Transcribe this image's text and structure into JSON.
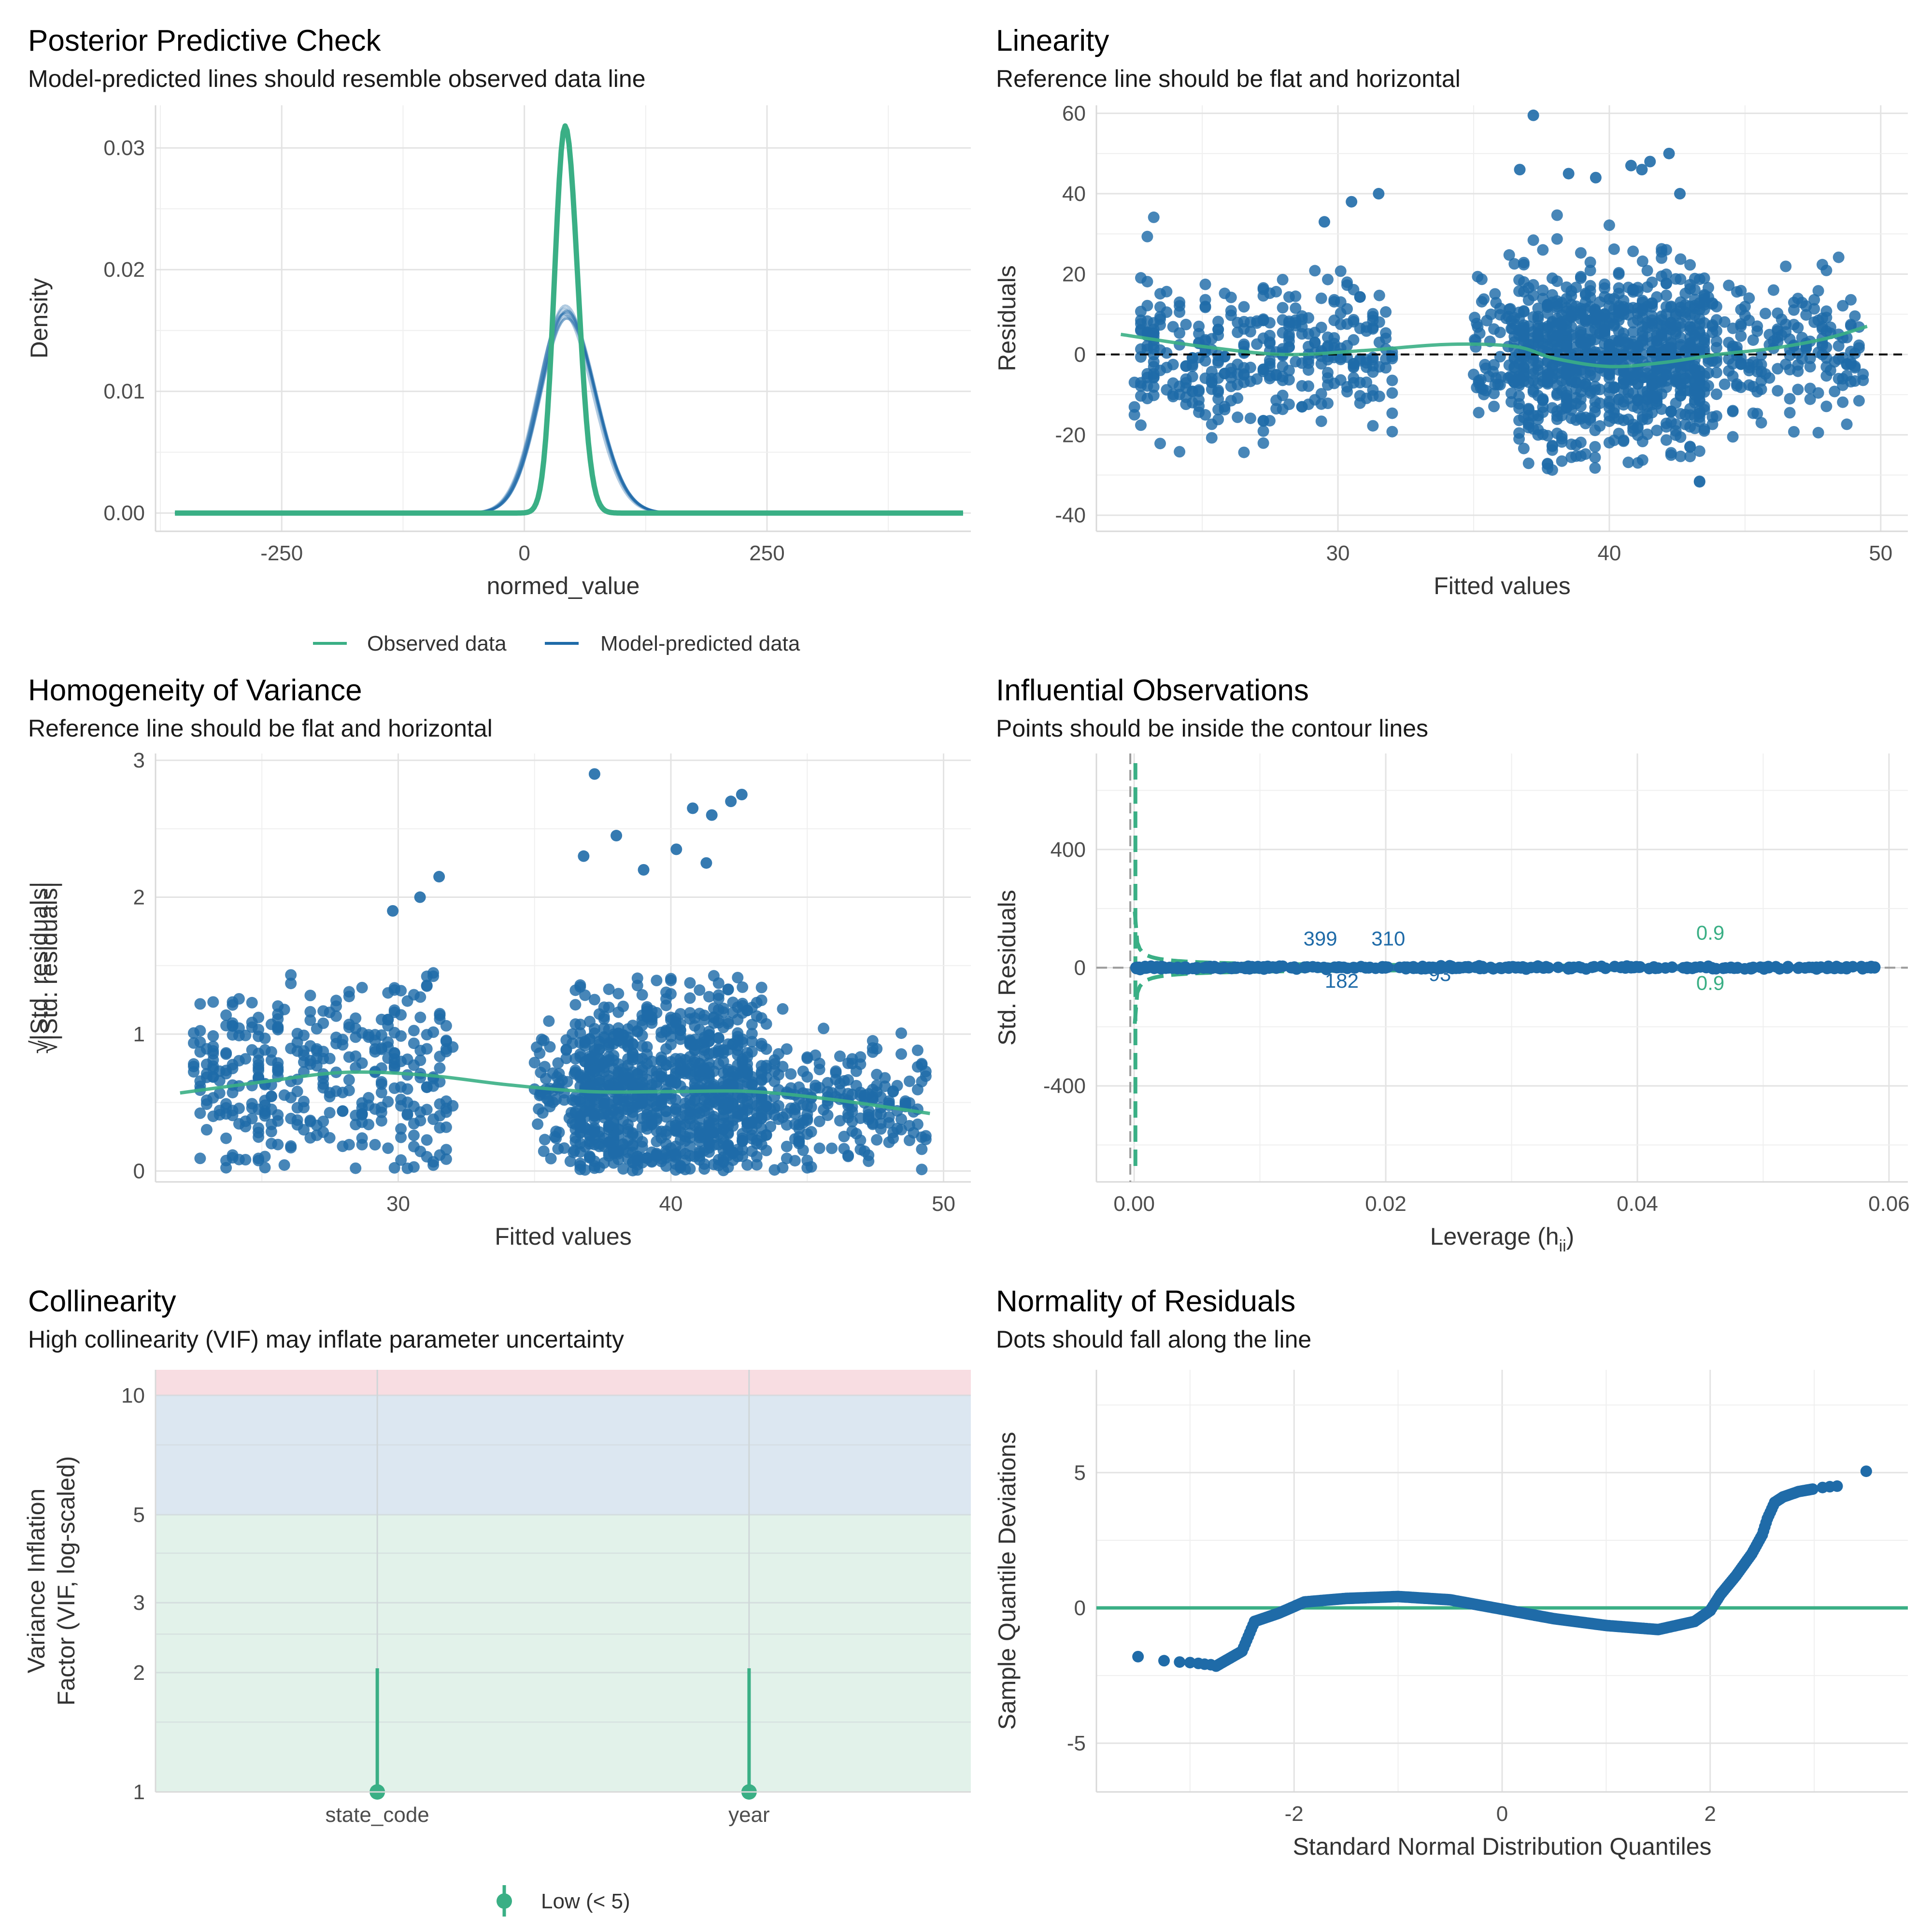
{
  "colors": {
    "observed": "#3aaf85",
    "predicted": "#1f6ba8",
    "points": "#1f6ba8",
    "smooth": "#3aaf85",
    "vif_low": "#3aaf85",
    "zone_low": "#e2f2ea",
    "zone_mid": "#dce7f1",
    "zone_high": "#f8dde2",
    "grid": "#e3e3e3"
  },
  "chart_data": [
    {
      "id": "ppc",
      "type": "line",
      "title": "Posterior Predictive Check",
      "subtitle": "Model-predicted lines should resemble observed data line",
      "xlabel": "normed_value",
      "ylabel": "Density",
      "xlim": [
        -380,
        460
      ],
      "ylim": [
        -0.0015,
        0.0335
      ],
      "xticks": [
        {
          "v": -250,
          "label": "-250"
        },
        {
          "v": 0,
          "label": "0"
        },
        {
          "v": 250,
          "label": "250"
        }
      ],
      "yticks": [
        {
          "v": 0,
          "label": "0.00"
        },
        {
          "v": 0.01,
          "label": "0.01"
        },
        {
          "v": 0.02,
          "label": "0.02"
        },
        {
          "v": 0.03,
          "label": "0.03"
        }
      ],
      "x_range": [
        -360,
        453
      ],
      "legend_position": "bottom",
      "series": [
        {
          "name": "Observed data",
          "shape": "peak",
          "peak_x": 42,
          "peak_y": 0.0318,
          "sigma_left": 11,
          "sigma_right": 13
        },
        {
          "name": "Model-predicted data",
          "shape": "peak",
          "peak_x": 42,
          "peak_y": 0.0165,
          "sigma_left": 27,
          "sigma_right": 30
        }
      ]
    },
    {
      "id": "linearity",
      "type": "scatter",
      "title": "Linearity",
      "subtitle": "Reference line should be flat and horizontal",
      "xlabel": "Fitted values",
      "ylabel": "Residuals",
      "xlim": [
        21.1,
        51
      ],
      "ylim": [
        -44,
        62
      ],
      "xticks": [
        {
          "v": 30,
          "label": "30"
        },
        {
          "v": 40,
          "label": "40"
        },
        {
          "v": 50,
          "label": "50"
        }
      ],
      "yticks": [
        {
          "v": -40,
          "label": "-40"
        },
        {
          "v": -20,
          "label": "-20"
        },
        {
          "v": 0,
          "label": "0"
        },
        {
          "v": 20,
          "label": "20"
        },
        {
          "v": 40,
          "label": "40"
        },
        {
          "v": 60,
          "label": "60"
        }
      ],
      "reference_line": 0,
      "clusters": [
        {
          "x": [
            22.5,
            32
          ],
          "n": 360,
          "sd": 12
        },
        {
          "x": [
            35,
            36.5
          ],
          "n": 60,
          "sd": 11
        },
        {
          "x": [
            36.5,
            43.5
          ],
          "n": 900,
          "sd": 14
        },
        {
          "x": [
            43.5,
            49.5
          ],
          "n": 200,
          "sd": 11
        }
      ],
      "outliers": [
        [
          37.2,
          59.5
        ],
        [
          42.2,
          50
        ],
        [
          41.5,
          48
        ],
        [
          40.8,
          47
        ],
        [
          36.7,
          46
        ],
        [
          31.5,
          40
        ],
        [
          30.5,
          38
        ],
        [
          29.5,
          33
        ],
        [
          38.5,
          45
        ],
        [
          41.2,
          46
        ],
        [
          42.6,
          40
        ],
        [
          39.5,
          44
        ]
      ],
      "smooth": [
        [
          22,
          5
        ],
        [
          25,
          2
        ],
        [
          28,
          0
        ],
        [
          31,
          1
        ],
        [
          34,
          2.5
        ],
        [
          36.5,
          2
        ],
        [
          38,
          -1
        ],
        [
          40,
          -3
        ],
        [
          42,
          -2
        ],
        [
          44,
          0
        ],
        [
          46,
          1.5
        ],
        [
          48,
          4
        ],
        [
          49.5,
          7
        ]
      ]
    },
    {
      "id": "homogeneity",
      "type": "scatter",
      "title": "Homogeneity of Variance",
      "subtitle": "Reference line should be flat and horizontal",
      "xlabel": "Fitted values",
      "ylabel": "√|Std. residuals|",
      "xlim": [
        21.1,
        51
      ],
      "ylim": [
        -0.08,
        3.05
      ],
      "xticks": [
        {
          "v": 30,
          "label": "30"
        },
        {
          "v": 40,
          "label": "40"
        },
        {
          "v": 50,
          "label": "50"
        }
      ],
      "yticks": [
        {
          "v": 0,
          "label": "0"
        },
        {
          "v": 1,
          "label": "1"
        },
        {
          "v": 2,
          "label": "2"
        },
        {
          "v": 3,
          "label": "3"
        }
      ],
      "clusters": [
        {
          "x": [
            22.5,
            32
          ],
          "n": 360,
          "mean": 0.7,
          "sd": 0.35
        },
        {
          "x": [
            35,
            36.5
          ],
          "n": 60,
          "mean": 0.6,
          "sd": 0.3
        },
        {
          "x": [
            36.5,
            43.5
          ],
          "n": 900,
          "mean": 0.6,
          "sd": 0.38
        },
        {
          "x": [
            43.5,
            49.5
          ],
          "n": 200,
          "mean": 0.5,
          "sd": 0.25
        }
      ],
      "outliers": [
        [
          37.2,
          2.9
        ],
        [
          42.6,
          2.75
        ],
        [
          42.2,
          2.7
        ],
        [
          41.5,
          2.6
        ],
        [
          40.8,
          2.65
        ],
        [
          31.5,
          2.15
        ],
        [
          30.8,
          2.0
        ],
        [
          29.8,
          1.9
        ],
        [
          36.8,
          2.3
        ],
        [
          38,
          2.45
        ],
        [
          39,
          2.2
        ],
        [
          40.2,
          2.35
        ],
        [
          41.3,
          2.25
        ]
      ],
      "smooth": [
        [
          22,
          0.57
        ],
        [
          25,
          0.65
        ],
        [
          28,
          0.72
        ],
        [
          31,
          0.7
        ],
        [
          34,
          0.63
        ],
        [
          37,
          0.58
        ],
        [
          40,
          0.58
        ],
        [
          43,
          0.58
        ],
        [
          46,
          0.52
        ],
        [
          49.5,
          0.42
        ]
      ]
    },
    {
      "id": "influential",
      "type": "scatter",
      "title": "Influential Observations",
      "subtitle": "Points should be inside the contour lines",
      "xlabel": "Leverage (h",
      "xlabel_sub": "ii",
      "xlabel_end": ")",
      "ylabel": "Std. Residuals",
      "xlim": [
        -0.003,
        0.0615
      ],
      "ylim": [
        -725,
        725
      ],
      "xticks": [
        {
          "v": 0,
          "label": "0.00"
        },
        {
          "v": 0.02,
          "label": "0.02"
        },
        {
          "v": 0.04,
          "label": "0.04"
        },
        {
          "v": 0.06,
          "label": "0.06"
        }
      ],
      "yticks": [
        {
          "v": -400,
          "label": "-400"
        },
        {
          "v": 0,
          "label": "0"
        },
        {
          "v": 400,
          "label": "400"
        }
      ],
      "contour_label": "0.9",
      "point_labels": [
        {
          "x": 0.0148,
          "y": 75,
          "text": "399"
        },
        {
          "x": 0.0202,
          "y": 75,
          "text": "310"
        },
        {
          "x": 0.0165,
          "y": -68,
          "text": "182"
        },
        {
          "x": 0.0243,
          "y": -45,
          "text": "93"
        }
      ],
      "contour_label_pos": [
        [
          0.0458,
          95
        ],
        [
          0.0458,
          -75
        ]
      ],
      "leverage_max": 0.059
    },
    {
      "id": "collinearity",
      "type": "scatter",
      "title": "Collinearity",
      "subtitle": "High collinearity (VIF) may inflate parameter uncertainty",
      "xlabel": "",
      "ylabel": [
        "Variance Inflation",
        "Factor (VIF, log-scaled)"
      ],
      "log_scale": true,
      "ylim": [
        1,
        11.6
      ],
      "yticks": [
        {
          "v": 1,
          "label": "1"
        },
        {
          "v": 2,
          "label": "2"
        },
        {
          "v": 3,
          "label": "3"
        },
        {
          "v": 5,
          "label": "5"
        },
        {
          "v": 10,
          "label": "10"
        }
      ],
      "categories": [
        "state_code",
        "year"
      ],
      "values": [
        1.0,
        1.0
      ],
      "ci_upper": [
        2.05,
        2.05
      ],
      "zones": [
        {
          "from": 1,
          "to": 5
        },
        {
          "from": 5,
          "to": 10
        },
        {
          "from": 10,
          "to": 11.6
        }
      ],
      "legend": [
        "Low (< 5)"
      ],
      "legend_position": "bottom"
    },
    {
      "id": "normality",
      "type": "scatter",
      "title": "Normality of Residuals",
      "subtitle": "Dots should fall along the line",
      "xlabel": "Standard Normal Distribution Quantiles",
      "ylabel": "Sample Quantile Deviations",
      "xlim": [
        -3.9,
        3.9
      ],
      "ylim": [
        -6.8,
        8.8
      ],
      "xticks": [
        {
          "v": -2,
          "label": "-2"
        },
        {
          "v": 0,
          "label": "0"
        },
        {
          "v": 2,
          "label": "2"
        }
      ],
      "yticks": [
        {
          "v": -5,
          "label": "-5"
        },
        {
          "v": 0,
          "label": "0"
        },
        {
          "v": 5,
          "label": "5"
        }
      ],
      "reference_line": 0,
      "curve": [
        [
          -2.75,
          -2.15
        ],
        [
          -2.5,
          -1.6
        ],
        [
          -2.38,
          -0.5
        ],
        [
          -2.15,
          -0.2
        ],
        [
          -1.9,
          0.22
        ],
        [
          -1.5,
          0.35
        ],
        [
          -1.0,
          0.42
        ],
        [
          -0.5,
          0.3
        ],
        [
          0.0,
          -0.05
        ],
        [
          0.5,
          -0.4
        ],
        [
          1.0,
          -0.65
        ],
        [
          1.5,
          -0.8
        ],
        [
          1.85,
          -0.5
        ],
        [
          2.0,
          -0.1
        ],
        [
          2.1,
          0.5
        ],
        [
          2.25,
          1.2
        ],
        [
          2.4,
          2.0
        ],
        [
          2.5,
          2.7
        ],
        [
          2.55,
          3.3
        ],
        [
          2.62,
          3.9
        ],
        [
          2.7,
          4.1
        ],
        [
          2.85,
          4.3
        ],
        [
          3.0,
          4.4
        ]
      ],
      "tail_points": [
        [
          -3.5,
          -1.8
        ],
        [
          -3.25,
          -1.95
        ],
        [
          -3.1,
          -2.0
        ],
        [
          -3.0,
          -2.02
        ],
        [
          -2.92,
          -2.05
        ],
        [
          -2.86,
          -2.08
        ],
        [
          -2.8,
          -2.1
        ],
        [
          3.08,
          4.45
        ],
        [
          3.15,
          4.48
        ],
        [
          3.22,
          4.5
        ],
        [
          3.5,
          5.05
        ]
      ]
    }
  ]
}
